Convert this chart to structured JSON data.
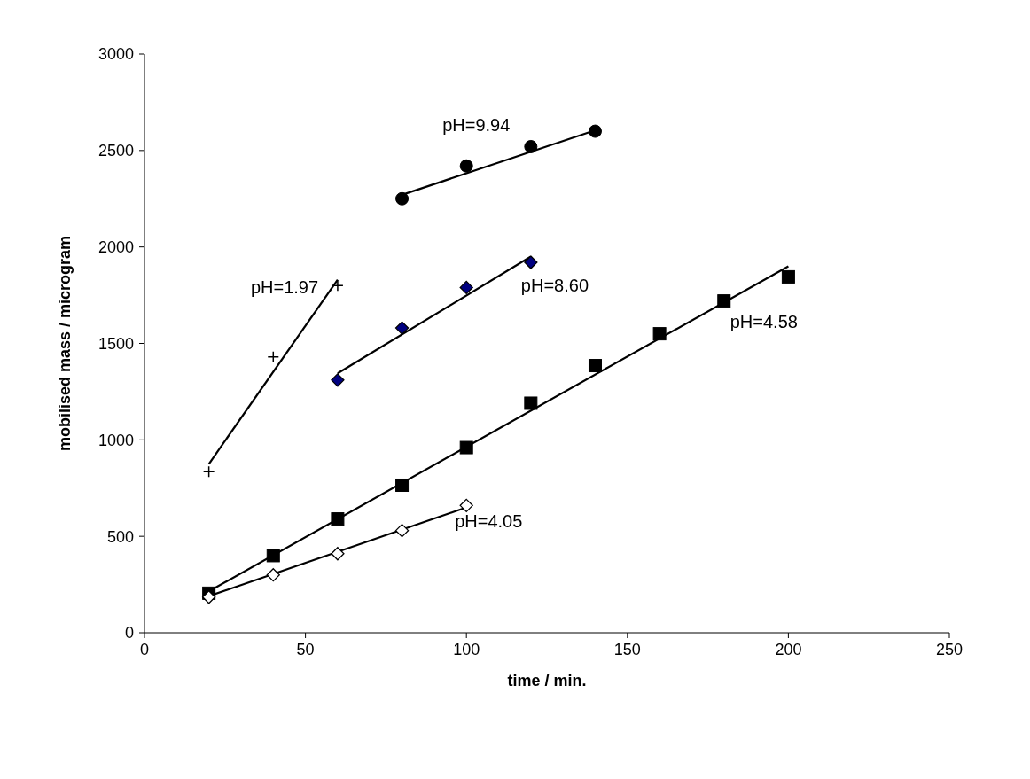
{
  "chart_data": {
    "type": "scatter",
    "xlabel": "time / min.",
    "ylabel": "mobilised mass / microgram",
    "xlim": [
      0,
      250
    ],
    "xticks": [
      0,
      50,
      100,
      150,
      200,
      250
    ],
    "ylim": [
      0,
      3000
    ],
    "yticks": [
      0,
      500,
      1000,
      1500,
      2000,
      2500,
      3000
    ],
    "grid": false,
    "series": [
      {
        "name": "pH=9.94",
        "marker": "circle",
        "color": "#000000",
        "x": [
          80,
          100,
          120,
          140
        ],
        "values": [
          2250,
          2420,
          2520,
          2600
        ]
      },
      {
        "type": "line",
        "marker": "none",
        "color": "#000000",
        "x": [
          80,
          140
        ],
        "values": [
          2270,
          2605
        ]
      },
      {
        "name": "pH=8.60",
        "marker": "diamond",
        "color": "#000080",
        "x": [
          60,
          80,
          100,
          120
        ],
        "values": [
          1310,
          1580,
          1790,
          1920
        ]
      },
      {
        "type": "line",
        "marker": "none",
        "color": "#000000",
        "x": [
          60,
          120
        ],
        "values": [
          1345,
          1950
        ]
      },
      {
        "name": "pH=1.97",
        "marker": "cross",
        "color": "#000000",
        "x": [
          20,
          40,
          60
        ],
        "values": [
          835,
          1430,
          1800
        ]
      },
      {
        "type": "line",
        "marker": "none",
        "color": "#000000",
        "x": [
          20,
          60
        ],
        "values": [
          875,
          1830
        ]
      },
      {
        "name": "pH=4.58",
        "marker": "square",
        "color": "#000000",
        "x": [
          20,
          40,
          60,
          80,
          100,
          120,
          140,
          160,
          180,
          200
        ],
        "values": [
          205,
          400,
          590,
          765,
          960,
          1190,
          1385,
          1550,
          1720,
          1845
        ]
      },
      {
        "type": "line",
        "marker": "none",
        "color": "#000000",
        "x": [
          20,
          200
        ],
        "values": [
          215,
          1900
        ]
      },
      {
        "name": "pH=4.05",
        "marker": "diamond",
        "color": "#ffffff",
        "x": [
          20,
          40,
          60,
          80,
          100
        ],
        "values": [
          185,
          300,
          410,
          530,
          660
        ]
      },
      {
        "type": "line",
        "marker": "none",
        "color": "#000000",
        "x": [
          20,
          100
        ],
        "values": [
          190,
          650
        ]
      }
    ]
  }
}
